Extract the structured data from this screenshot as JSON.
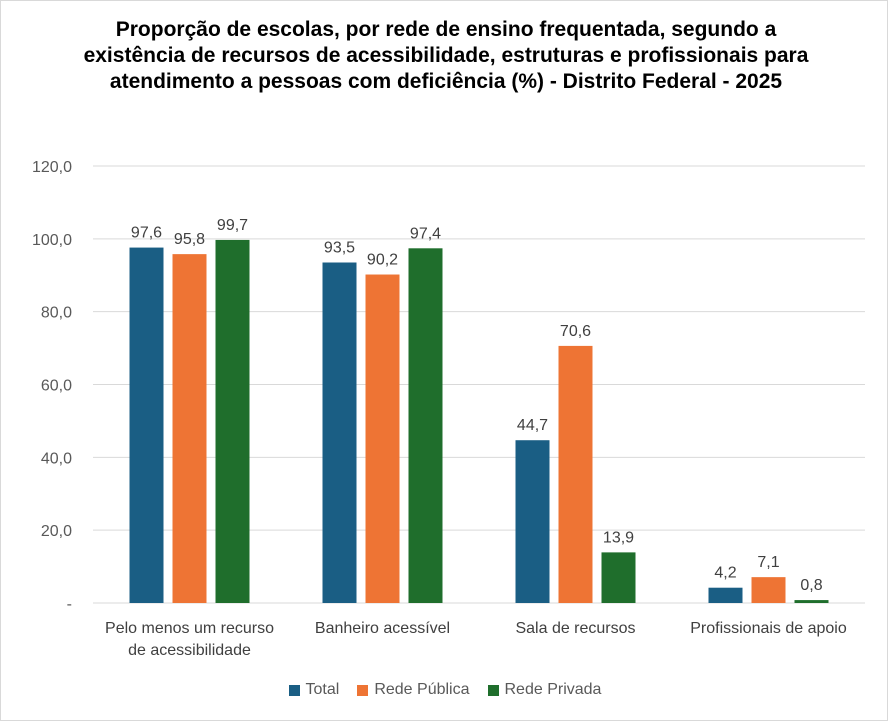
{
  "chart_data": {
    "type": "bar",
    "title": "Proporção de escolas, por rede de ensino frequentada, segundo a existência de recursos de acessibilidade, estruturas e profissionais para atendimento a pessoas com deficiência (%) - Distrito Federal - 2025",
    "categories": [
      [
        "Pelo menos um recurso",
        "de acessibilidade"
      ],
      [
        "Banheiro acessível"
      ],
      [
        "Sala de recursos"
      ],
      [
        "Profissionais de apoio"
      ]
    ],
    "series": [
      {
        "name": "Total",
        "color": "#1a5e84",
        "values": [
          97.6,
          93.5,
          44.7,
          4.2
        ],
        "labels": [
          "97,6",
          "93,5",
          "44,7",
          "4,2"
        ]
      },
      {
        "name": "Rede Pública",
        "color": "#ee7434",
        "values": [
          95.8,
          90.2,
          70.6,
          7.1
        ],
        "labels": [
          "95,8",
          "90,2",
          "70,6",
          "7,1"
        ]
      },
      {
        "name": "Rede Privada",
        "color": "#1f6e2c",
        "values": [
          99.7,
          97.4,
          13.9,
          0.8
        ],
        "labels": [
          "99,7",
          "97,4",
          "13,9",
          "0,8"
        ]
      }
    ],
    "ylim": [
      0,
      120
    ],
    "yticks": [
      0,
      20,
      40,
      60,
      80,
      100,
      120
    ],
    "ytick_labels": [
      "-",
      "20,0",
      "40,0",
      "60,0",
      "80,0",
      "100,0",
      "120,0"
    ],
    "xlabel": "",
    "ylabel": "",
    "grid": true,
    "legend": "bottom"
  }
}
